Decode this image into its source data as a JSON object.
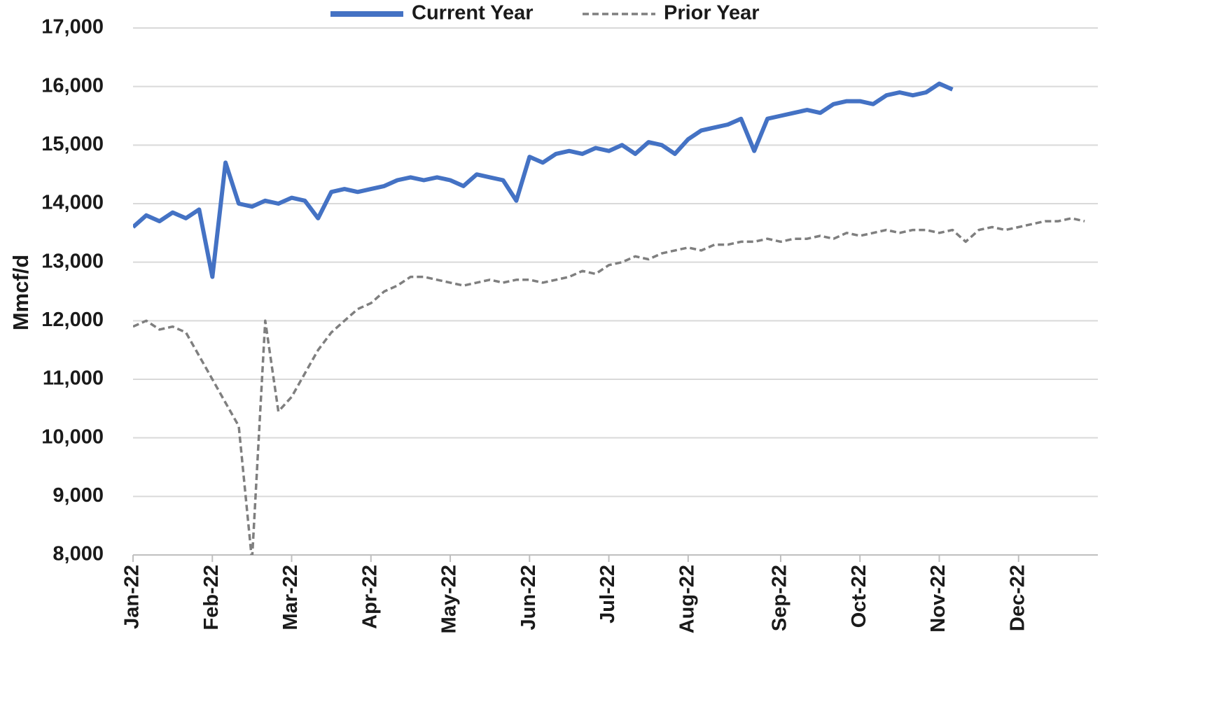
{
  "chart_data": {
    "type": "line",
    "y_label": "Mmcf/d",
    "categories": [
      "Jan-22",
      null,
      null,
      null,
      null,
      null,
      "Feb-22",
      null,
      null,
      null,
      null,
      null,
      "Mar-22",
      null,
      null,
      null,
      null,
      null,
      "Apr-22",
      null,
      null,
      null,
      null,
      null,
      "May-22",
      null,
      null,
      null,
      null,
      null,
      "Jun-22",
      null,
      null,
      null,
      null,
      null,
      "Jul-22",
      null,
      null,
      null,
      null,
      null,
      "Aug-22",
      null,
      null,
      null,
      null,
      null,
      null,
      "Sep-22",
      null,
      null,
      null,
      null,
      null,
      "Oct-22",
      null,
      null,
      null,
      null,
      null,
      "Nov-22",
      null,
      null,
      null,
      null,
      null,
      "Dec-22",
      null,
      null,
      null,
      null,
      null
    ],
    "series": [
      {
        "name": "Current Year",
        "color": "#4472c4",
        "dashed": false,
        "values": [
          13600,
          13800,
          13700,
          13850,
          13750,
          13900,
          12750,
          14700,
          14000,
          13950,
          14050,
          14000,
          14100,
          14050,
          13750,
          14200,
          14250,
          14200,
          14250,
          14300,
          14400,
          14450,
          14400,
          14450,
          14400,
          14300,
          14500,
          14450,
          14400,
          14050,
          14800,
          14700,
          14850,
          14900,
          14850,
          14950,
          14900,
          15000,
          14850,
          15050,
          15000,
          14850,
          15100,
          15250,
          15300,
          15350,
          15450,
          14900,
          15450,
          15500,
          15550,
          15600,
          15550,
          15700,
          15750,
          15750,
          15700,
          15850,
          15900,
          15850,
          15900,
          16050,
          15950,
          null,
          null,
          null,
          null,
          null,
          null,
          null,
          null,
          null,
          null
        ]
      },
      {
        "name": "Prior Year",
        "color": "#7f7f7f",
        "dashed": true,
        "values": [
          11900,
          12000,
          11850,
          11900,
          11800,
          11400,
          11000,
          10600,
          10200,
          7900,
          12000,
          10450,
          10700,
          11100,
          11500,
          11800,
          12000,
          12200,
          12300,
          12500,
          12600,
          12750,
          12750,
          12700,
          12650,
          12600,
          12650,
          12700,
          12650,
          12700,
          12700,
          12650,
          12700,
          12750,
          12850,
          12800,
          12950,
          13000,
          13100,
          13050,
          13150,
          13200,
          13250,
          13200,
          13300,
          13300,
          13350,
          13350,
          13400,
          13350,
          13400,
          13400,
          13450,
          13400,
          13500,
          13450,
          13500,
          13550,
          13500,
          13550,
          13550,
          13500,
          13550,
          13350,
          13550,
          13600,
          13550,
          13600,
          13650,
          13700,
          13700,
          13750,
          13700
        ]
      }
    ],
    "ylim": [
      8000,
      17000
    ],
    "yticks": [
      {
        "value": 8000,
        "label": "8,000"
      },
      {
        "value": 9000,
        "label": "9,000"
      },
      {
        "value": 10000,
        "label": "10,000"
      },
      {
        "value": 11000,
        "label": "11,000"
      },
      {
        "value": 12000,
        "label": "12,000"
      },
      {
        "value": 13000,
        "label": "13,000"
      },
      {
        "value": 14000,
        "label": "14,000"
      },
      {
        "value": 15000,
        "label": "15,000"
      },
      {
        "value": 16000,
        "label": "16,000"
      },
      {
        "value": 17000,
        "label": "17,000"
      }
    ],
    "grid": true,
    "legend": "top"
  }
}
